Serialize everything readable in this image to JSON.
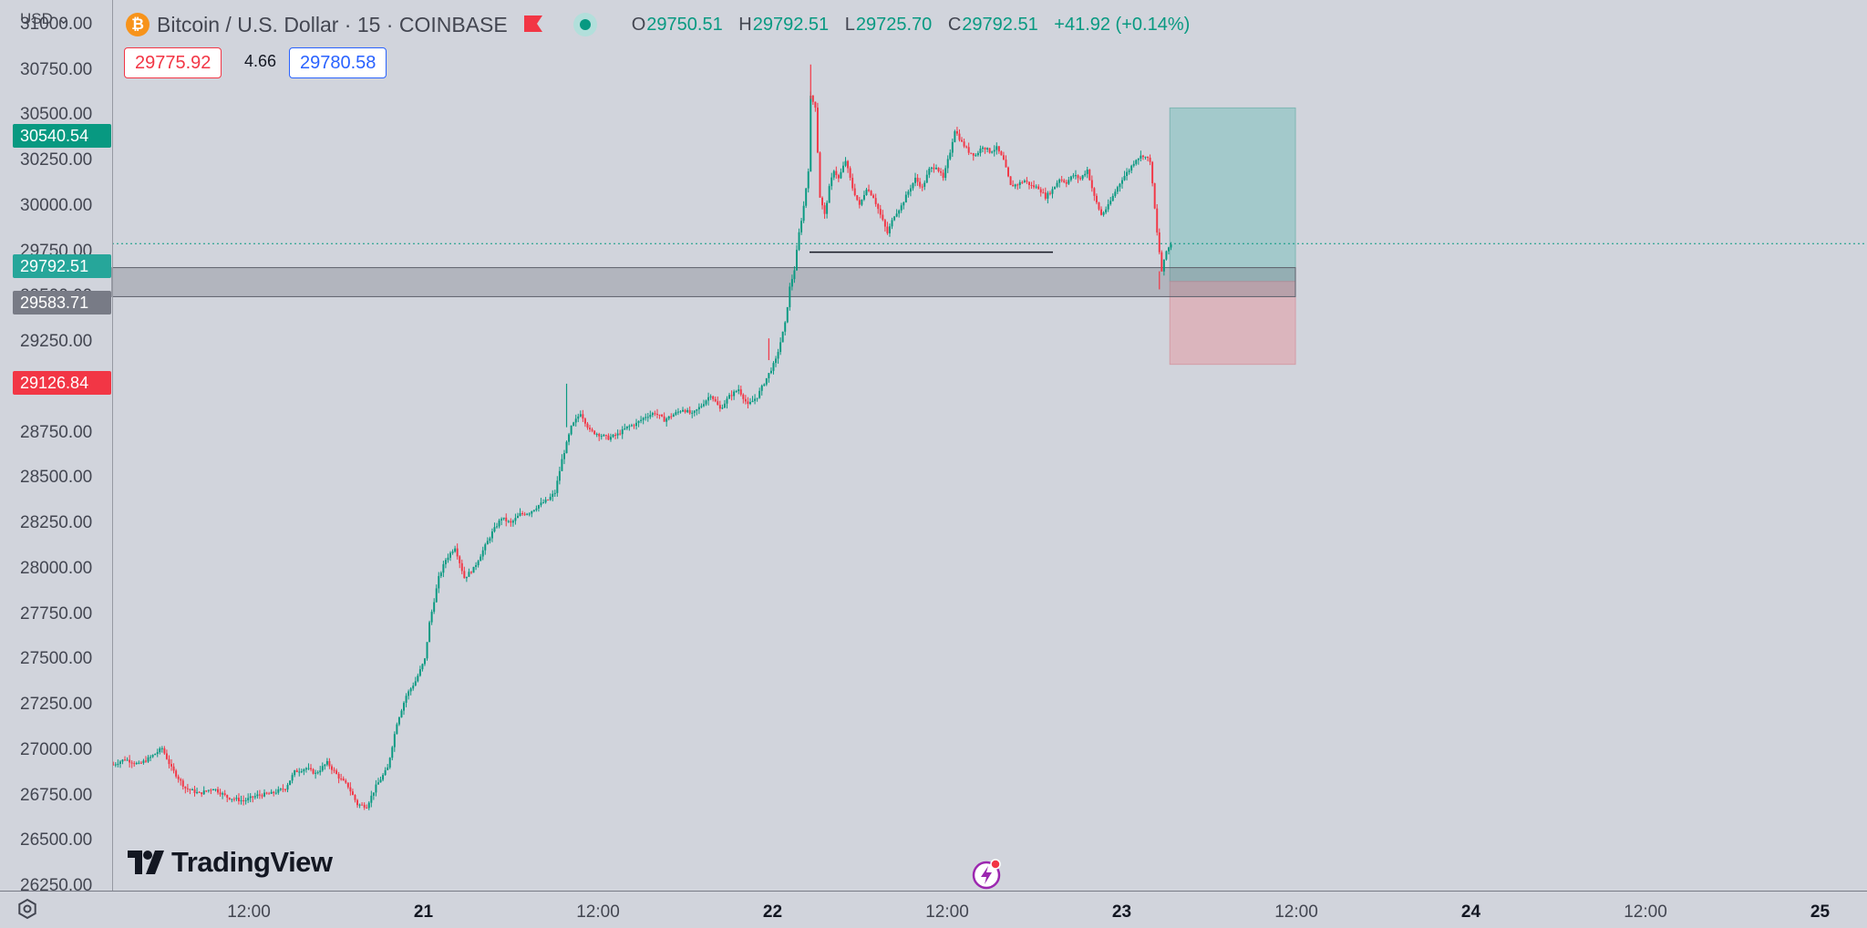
{
  "header": {
    "symbol_title": "Bitcoin / U.S. Dollar · 15 · COINBASE",
    "ohlc": [
      {
        "key": "O",
        "value": "29750.51"
      },
      {
        "key": "H",
        "value": "29792.51"
      },
      {
        "key": "L",
        "value": "29725.70"
      },
      {
        "key": "C",
        "value": "29792.51"
      }
    ],
    "change": "+41.92 (+0.14%)",
    "currency": "USD",
    "sell_price": "29775.92",
    "spread": "4.66",
    "buy_price": "29780.58"
  },
  "price_badges": {
    "take_profit": "30540.54",
    "current": "29792.51",
    "entry": "29583.71",
    "stop_loss": "29126.84"
  },
  "brand": {
    "logo_text": "TradingView"
  },
  "colors": {
    "up": "#089981",
    "down": "#f23645",
    "background": "#d1d4dc",
    "profit_zone": "#a3c9cb",
    "loss_zone": "#dbb5bd"
  },
  "chart_data": {
    "type": "candlestick",
    "title": "Bitcoin / U.S. Dollar · 15 · COINBASE",
    "interval": "15",
    "ylim": [
      26200,
      31150
    ],
    "y_ticks": [
      "26250.00",
      "26500.00",
      "26750.00",
      "27000.00",
      "27250.00",
      "27500.00",
      "27750.00",
      "28000.00",
      "28250.00",
      "28500.00",
      "28750.00",
      "29000.00",
      "29250.00",
      "29500.00",
      "29750.00",
      "30000.00",
      "30250.00",
      "30500.00",
      "30750.00",
      "31000.00"
    ],
    "x_ticks": [
      {
        "label": "12:00",
        "bold": false
      },
      {
        "label": "21",
        "bold": true
      },
      {
        "label": "12:00",
        "bold": false
      },
      {
        "label": "22",
        "bold": true
      },
      {
        "label": "12:00",
        "bold": false
      },
      {
        "label": "23",
        "bold": true
      },
      {
        "label": "12:00",
        "bold": false
      },
      {
        "label": "24",
        "bold": true
      },
      {
        "label": "12:00",
        "bold": false
      },
      {
        "label": "25",
        "bold": true
      }
    ],
    "path": [
      [
        0,
        26920
      ],
      [
        5,
        26950
      ],
      [
        11,
        26920
      ],
      [
        16,
        26960
      ],
      [
        21,
        27010
      ],
      [
        25,
        26900
      ],
      [
        31,
        26790
      ],
      [
        37,
        26760
      ],
      [
        43,
        26790
      ],
      [
        49,
        26740
      ],
      [
        56,
        26720
      ],
      [
        62,
        26750
      ],
      [
        68,
        26760
      ],
      [
        74,
        26790
      ],
      [
        78,
        26880
      ],
      [
        83,
        26900
      ],
      [
        87,
        26870
      ],
      [
        92,
        26930
      ],
      [
        97,
        26850
      ],
      [
        101,
        26800
      ],
      [
        105,
        26700
      ],
      [
        109,
        26690
      ],
      [
        113,
        26800
      ],
      [
        118,
        26900
      ],
      [
        122,
        27150
      ],
      [
        126,
        27300
      ],
      [
        130,
        27380
      ],
      [
        134,
        27500
      ],
      [
        136,
        27700
      ],
      [
        140,
        27950
      ],
      [
        143,
        28050
      ],
      [
        147,
        28120
      ],
      [
        151,
        27950
      ],
      [
        155,
        28000
      ],
      [
        159,
        28100
      ],
      [
        163,
        28200
      ],
      [
        167,
        28280
      ],
      [
        171,
        28250
      ],
      [
        175,
        28300
      ],
      [
        179,
        28310
      ],
      [
        183,
        28350
      ],
      [
        187,
        28380
      ],
      [
        190,
        28420
      ],
      [
        193,
        28600
      ],
      [
        197,
        28780
      ],
      [
        201,
        28860
      ],
      [
        205,
        28760
      ],
      [
        209,
        28740
      ],
      [
        213,
        28720
      ],
      [
        217,
        28740
      ],
      [
        221,
        28780
      ],
      [
        225,
        28800
      ],
      [
        229,
        28840
      ],
      [
        233,
        28860
      ],
      [
        237,
        28820
      ],
      [
        241,
        28850
      ],
      [
        245,
        28880
      ],
      [
        249,
        28850
      ],
      [
        253,
        28900
      ],
      [
        257,
        28960
      ],
      [
        261,
        28880
      ],
      [
        265,
        28950
      ],
      [
        269,
        28990
      ],
      [
        273,
        28900
      ],
      [
        277,
        28950
      ],
      [
        281,
        29050
      ],
      [
        285,
        29150
      ],
      [
        289,
        29350
      ],
      [
        291,
        29550
      ],
      [
        293,
        29650
      ],
      [
        295,
        29850
      ],
      [
        297,
        30000
      ],
      [
        299,
        30200
      ],
      [
        300,
        30600
      ],
      [
        302,
        30550
      ],
      [
        304,
        30050
      ],
      [
        306,
        29950
      ],
      [
        308,
        30100
      ],
      [
        310,
        30200
      ],
      [
        312,
        30150
      ],
      [
        315,
        30250
      ],
      [
        318,
        30100
      ],
      [
        321,
        30000
      ],
      [
        324,
        30100
      ],
      [
        327,
        30050
      ],
      [
        330,
        29950
      ],
      [
        333,
        29850
      ],
      [
        336,
        29950
      ],
      [
        339,
        30000
      ],
      [
        342,
        30080
      ],
      [
        345,
        30150
      ],
      [
        348,
        30100
      ],
      [
        351,
        30200
      ],
      [
        354,
        30220
      ],
      [
        357,
        30150
      ],
      [
        360,
        30300
      ],
      [
        362,
        30420
      ],
      [
        365,
        30350
      ],
      [
        368,
        30300
      ],
      [
        371,
        30280
      ],
      [
        374,
        30330
      ],
      [
        377,
        30300
      ],
      [
        380,
        30320
      ],
      [
        383,
        30250
      ],
      [
        386,
        30110
      ],
      [
        389,
        30120
      ],
      [
        392,
        30140
      ],
      [
        395,
        30110
      ],
      [
        398,
        30100
      ],
      [
        401,
        30050
      ],
      [
        404,
        30090
      ],
      [
        407,
        30150
      ],
      [
        410,
        30130
      ],
      [
        413,
        30170
      ],
      [
        416,
        30150
      ],
      [
        419,
        30200
      ],
      [
        422,
        30050
      ],
      [
        425,
        29950
      ],
      [
        428,
        30000
      ],
      [
        431,
        30080
      ],
      [
        434,
        30150
      ],
      [
        437,
        30200
      ],
      [
        440,
        30260
      ],
      [
        443,
        30280
      ],
      [
        446,
        30250
      ],
      [
        449,
        29850
      ],
      [
        451,
        29640
      ],
      [
        453,
        29750
      ],
      [
        455,
        29792.51
      ]
    ],
    "horizontal_lines": [
      {
        "value": 29792.51,
        "label": "29792.51"
      }
    ],
    "position_tool": {
      "type": "long",
      "entry": 29583.71,
      "take_profit": 30540.54,
      "stop_loss": 29126.84,
      "entry_zone": [
        29500,
        29660
      ]
    }
  }
}
